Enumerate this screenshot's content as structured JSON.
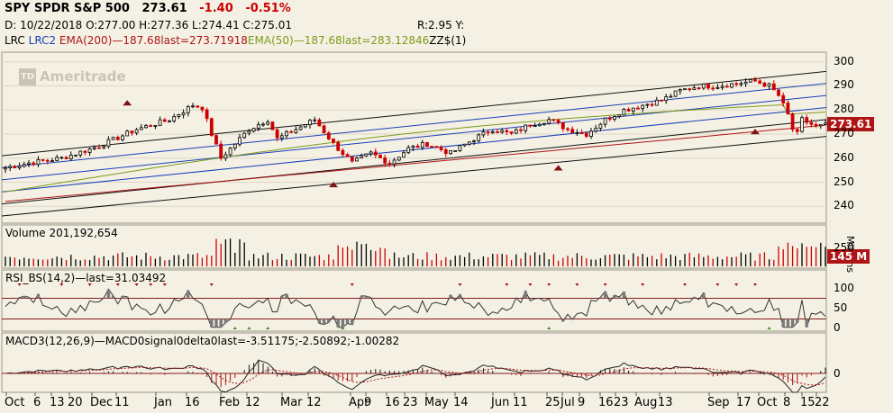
{
  "header": {
    "symbol": "SPY SPDR S&P 500",
    "last": "273.61",
    "change": "-1.40",
    "change_pct": "-0.51%",
    "date_line": "D: 10/22/2018 O:277.00 H:277.36 L:274.41 C:275.01",
    "r_line": "R:2.95 Y:",
    "lrc": "LRC",
    "lrc2": "LRC2",
    "ema200": "EMA(200)—187.68last=273.71918",
    "ema50": "EMA(50)—187.68last=283.12846",
    "zz": "ZZ$(1)"
  },
  "watermark": {
    "logo": "TD",
    "text": "Ameritrade"
  },
  "colors": {
    "background": "#f4f1e4",
    "up": "#000000",
    "down": "#cc0000",
    "ema200": "#b01515",
    "ema50": "#7e9a1a",
    "lrc": "#1a3fb8",
    "rsi_fill": "#7a7a7a",
    "last_tag": "#b01515"
  },
  "chart_data": [
    {
      "type": "candlestick",
      "title": "SPY SPDR S&P 500",
      "y_ticks": [
        240,
        250,
        260,
        270,
        280,
        290,
        300
      ],
      "ylim": [
        233,
        304
      ],
      "last_label": "273.61",
      "x_tick_labels": [
        "Oct",
        "6",
        "13",
        "20",
        "Dec",
        "11",
        "Jan",
        "16",
        "Feb",
        "12",
        "Mar",
        "12",
        "Apr",
        "9",
        "16",
        "23",
        "May",
        "14",
        "Jun",
        "11",
        "25",
        "Jul",
        "9",
        "16",
        "23",
        "Aug",
        "13",
        "Sep",
        "17",
        "Oct",
        "8",
        "15",
        "22"
      ],
      "series": [
        {
          "name": "EMA(200)",
          "start": 242,
          "end": 273.7
        },
        {
          "name": "EMA(50)",
          "start": 246,
          "end": 283.1
        }
      ],
      "channel": {
        "center_start": 251,
        "center_end": 286,
        "offsets": [
          -10,
          -5,
          5,
          10
        ]
      },
      "anchors": [
        [
          0,
          256
        ],
        [
          5,
          258
        ],
        [
          12,
          260
        ],
        [
          20,
          265
        ],
        [
          28,
          272
        ],
        [
          35,
          276
        ],
        [
          40,
          282
        ],
        [
          42,
          281
        ],
        [
          44,
          270
        ],
        [
          46,
          260
        ],
        [
          48,
          264
        ],
        [
          52,
          272
        ],
        [
          56,
          276
        ],
        [
          58,
          268
        ],
        [
          62,
          272
        ],
        [
          66,
          276
        ],
        [
          70,
          266
        ],
        [
          74,
          258
        ],
        [
          78,
          262
        ],
        [
          82,
          258
        ],
        [
          86,
          264
        ],
        [
          90,
          266
        ],
        [
          95,
          262
        ],
        [
          100,
          268
        ],
        [
          104,
          272
        ],
        [
          108,
          270
        ],
        [
          112,
          274
        ],
        [
          116,
          276
        ],
        [
          120,
          272
        ],
        [
          124,
          270
        ],
        [
          128,
          276
        ],
        [
          132,
          280
        ],
        [
          136,
          282
        ],
        [
          140,
          284
        ],
        [
          144,
          288
        ],
        [
          148,
          290
        ],
        [
          152,
          290
        ],
        [
          156,
          291
        ],
        [
          160,
          292
        ],
        [
          163,
          290
        ],
        [
          165,
          286
        ],
        [
          167,
          278
        ],
        [
          168,
          272
        ],
        [
          169,
          270
        ],
        [
          170,
          276
        ],
        [
          171,
          275
        ],
        [
          173,
          273
        ],
        [
          175,
          273.6
        ]
      ]
    },
    {
      "type": "bar",
      "title": "Volume 201,192,654",
      "y_ticks": [
        250
      ],
      "units": "Millions",
      "last_label": "145 M"
    },
    {
      "type": "line",
      "title": "RSI_BS(14,2)—last=31.03492",
      "y_ticks": [
        0,
        50,
        100
      ],
      "levels": [
        75,
        25
      ],
      "last": 31.03
    },
    {
      "type": "line",
      "title": "MACD3(12,26,9)—MACD0signal0delta0last=-3.51175;-2.50892;-1.00282",
      "y_ticks": [
        0
      ],
      "last": [
        -3.51175,
        -2.50892,
        -1.00282
      ]
    }
  ],
  "volume_label": "Volume 201,192,654",
  "volume_units": "Millions",
  "volume_last": "145 M",
  "vol_tick": "250",
  "rsi_label": "RSI_BS(14,2)—last=31.03492",
  "rsi_ticks": [
    "100",
    "50",
    "0"
  ],
  "macd_label": "MACD3(12,26,9)—MACD0signal0delta0last=-3.51175;-2.50892;-1.00282",
  "macd_tick": "0"
}
